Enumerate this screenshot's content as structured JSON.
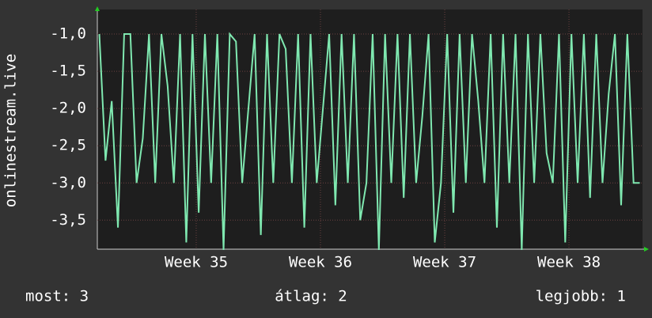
{
  "chart_data": {
    "type": "line",
    "y_label": "onlinestream.live",
    "x": [
      34.22,
      34.27,
      34.32,
      34.37,
      34.42,
      34.47,
      34.52,
      34.57,
      34.62,
      34.67,
      34.72,
      34.77,
      34.82,
      34.87,
      34.92,
      34.97,
      35.02,
      35.07,
      35.12,
      35.17,
      35.22,
      35.27,
      35.32,
      35.37,
      35.42,
      35.47,
      35.52,
      35.57,
      35.62,
      35.67,
      35.72,
      35.77,
      35.82,
      35.87,
      35.92,
      35.97,
      36.02,
      36.07,
      36.12,
      36.17,
      36.22,
      36.27,
      36.32,
      36.37,
      36.42,
      36.47,
      36.52,
      36.57,
      36.62,
      36.67,
      36.72,
      36.77,
      36.82,
      36.87,
      36.92,
      36.97,
      37.02,
      37.07,
      37.12,
      37.17,
      37.22,
      37.27,
      37.32,
      37.37,
      37.42,
      37.47,
      37.52,
      37.57,
      37.62,
      37.67,
      37.72,
      37.77,
      37.82,
      37.87,
      37.92,
      37.97,
      38.02,
      38.07,
      38.12,
      38.17,
      38.22,
      38.27,
      38.32,
      38.37,
      38.42,
      38.47,
      38.52,
      38.57
    ],
    "series": [
      {
        "name": "onlinestream.live",
        "color": "#7fe8b0",
        "values": [
          -1,
          -2.7,
          -1.9,
          -3.6,
          -1,
          -1,
          -3,
          -2.4,
          -1,
          -3,
          -1,
          -1.7,
          -3,
          -1,
          -3.8,
          -1,
          -3.4,
          -1,
          -3,
          -1,
          -3.9,
          -1,
          -1.1,
          -3,
          -2,
          -1,
          -3.7,
          -1,
          -3,
          -1,
          -1.2,
          -3,
          -1,
          -3.6,
          -1,
          -3,
          -2,
          -1,
          -3.3,
          -1,
          -3,
          -1,
          -3.5,
          -3,
          -1,
          -3.9,
          -1,
          -3,
          -1,
          -3.2,
          -1,
          -3,
          -2.1,
          -1,
          -3.8,
          -3,
          -1,
          -3.4,
          -1,
          -3,
          -1,
          -1.9,
          -3,
          -1,
          -3.6,
          -1,
          -3,
          -1,
          -3.9,
          -1,
          -3,
          -1,
          -2.6,
          -3,
          -1,
          -3.8,
          -1,
          -3,
          -1,
          -3.2,
          -1,
          -3,
          -1.8,
          -1,
          -3.3,
          -1,
          -3,
          -3
        ]
      }
    ],
    "xlim": [
      34.204,
      38.592
    ],
    "xticks": [
      {
        "value": 35,
        "label": "Week 35"
      },
      {
        "value": 36,
        "label": "Week 36"
      },
      {
        "value": 37,
        "label": "Week 37"
      },
      {
        "value": 38,
        "label": "Week 38"
      }
    ],
    "ylim": [
      -3.89,
      -0.67
    ],
    "yticks": [
      {
        "value": -1,
        "label": "-1,0"
      },
      {
        "value": -1.5,
        "label": "-1,5"
      },
      {
        "value": -2,
        "label": "-2,0"
      },
      {
        "value": -2.5,
        "label": "-2,5"
      },
      {
        "value": -3,
        "label": "-3,0"
      },
      {
        "value": -3.5,
        "label": "-3,5"
      }
    ],
    "grid": true,
    "stats": [
      "most: 3",
      "átlag: 2",
      "legjobb: 1"
    ]
  }
}
